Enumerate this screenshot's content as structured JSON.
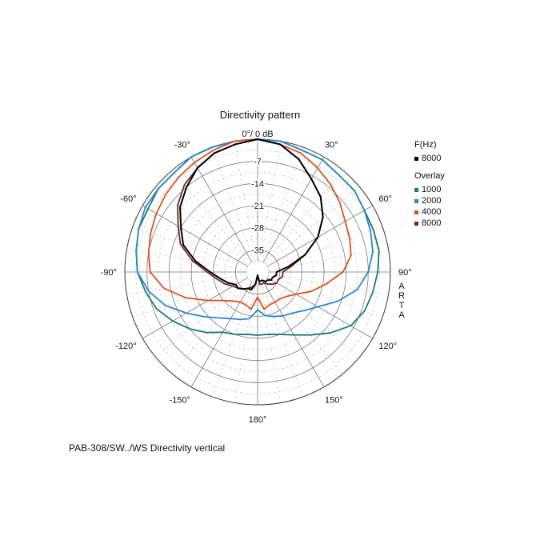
{
  "chart_data": {
    "type": "polar",
    "title": "Directivity pattern",
    "caption": "PAB-308/SW../WS  Directivity vertical",
    "watermark": "ARTA",
    "radial_axis": {
      "unit_top_label": "0°/ 0 dB",
      "ticks": [
        "-7",
        "-14",
        "-21",
        "-28",
        "-35"
      ],
      "tick_values": [
        -7,
        -14,
        -21,
        -28,
        -35
      ],
      "range_db": [
        -42,
        0
      ]
    },
    "angle_labels": [
      "-30°",
      "30°",
      "-60°",
      "60°",
      "-90°",
      "90°",
      "-120°",
      "120°",
      "-150°",
      "150°",
      "180°"
    ],
    "angle_values": [
      -30,
      30,
      -60,
      60,
      -90,
      90,
      -120,
      120,
      -150,
      150,
      180
    ],
    "legend": {
      "main_header": "F(Hz)",
      "main": [
        {
          "label": "8000",
          "color": "#000000"
        }
      ],
      "overlay_header": "Overlay",
      "overlay": [
        {
          "label": "1000",
          "color": "#1a7a6e"
        },
        {
          "label": "2000",
          "color": "#2a86cf"
        },
        {
          "label": "4000",
          "color": "#e0501e"
        },
        {
          "label": "8000",
          "color": "#6b2a22"
        }
      ]
    },
    "series": [
      {
        "name": "8000",
        "color": "#000000",
        "angles": [
          0,
          10,
          20,
          30,
          40,
          50,
          60,
          70,
          80,
          90,
          100,
          110,
          120,
          130,
          140,
          150,
          160,
          170,
          180,
          190,
          200,
          210,
          220,
          230,
          240,
          250,
          260,
          270,
          280,
          290,
          300,
          310,
          320,
          330,
          340,
          350
        ],
        "db": [
          0,
          -1,
          -4,
          -8,
          -11,
          -15,
          -20,
          -26,
          -32,
          -36,
          -36,
          -37,
          -37,
          -38,
          -38,
          -39,
          -39,
          -39,
          -41,
          -38,
          -36,
          -36,
          -35,
          -34,
          -34,
          -32,
          -30,
          -27,
          -22,
          -17,
          -14,
          -10,
          -7,
          -4,
          -2,
          -1
        ]
      },
      {
        "name": "1000",
        "color": "#1a7a6e",
        "angles": [
          0,
          10,
          20,
          30,
          40,
          50,
          60,
          70,
          80,
          90,
          100,
          110,
          120,
          130,
          140,
          150,
          160,
          170,
          180,
          190,
          200,
          210,
          220,
          230,
          240,
          250,
          260,
          270,
          280,
          290,
          300,
          310,
          320,
          330,
          340,
          350
        ],
        "db": [
          0,
          0,
          -1,
          -1,
          -2,
          -2,
          -3,
          -3,
          -3,
          -4,
          -5,
          -6,
          -8,
          -12,
          -16,
          -19,
          -21,
          -22,
          -22,
          -22,
          -21,
          -20,
          -17,
          -14,
          -11,
          -8,
          -6,
          -4,
          -3,
          -2,
          -2,
          -1,
          -1,
          0,
          0,
          0
        ]
      },
      {
        "name": "2000",
        "color": "#2a86cf",
        "angles": [
          0,
          10,
          20,
          30,
          40,
          50,
          60,
          70,
          80,
          90,
          100,
          110,
          120,
          130,
          140,
          150,
          160,
          170,
          180,
          190,
          200,
          210,
          220,
          230,
          240,
          250,
          260,
          270,
          280,
          290,
          300,
          310,
          320,
          330,
          340,
          350
        ],
        "db": [
          0,
          0,
          -1,
          -1,
          -2,
          -2,
          -3,
          -4,
          -5,
          -7,
          -10,
          -15,
          -20,
          -23,
          -25,
          -26,
          -27,
          -28,
          -30,
          -27,
          -26,
          -25,
          -23,
          -20,
          -16,
          -11,
          -7,
          -4,
          -3,
          -2,
          -1,
          -1,
          -1,
          0,
          0,
          0
        ]
      },
      {
        "name": "4000",
        "color": "#e0501e",
        "angles": [
          0,
          10,
          20,
          30,
          40,
          50,
          60,
          70,
          80,
          90,
          100,
          110,
          120,
          130,
          140,
          150,
          160,
          170,
          180,
          190,
          200,
          210,
          220,
          230,
          240,
          250,
          260,
          270,
          280,
          290,
          300,
          310,
          320,
          330,
          340,
          350
        ],
        "db": [
          0,
          -1,
          -2,
          -4,
          -6,
          -8,
          -10,
          -11,
          -12,
          -15,
          -20,
          -24,
          -28,
          -30,
          -31,
          -31,
          -31,
          -30,
          -34,
          -30,
          -31,
          -31,
          -30,
          -28,
          -24,
          -18,
          -12,
          -8,
          -7,
          -6,
          -5,
          -4,
          -3,
          -2,
          -1,
          0
        ]
      },
      {
        "name": "8000 overlay",
        "color": "#6b2a22",
        "angles": [
          0,
          10,
          20,
          30,
          40,
          50,
          60,
          70,
          80,
          90,
          100,
          110,
          120,
          130,
          140,
          150,
          160,
          170,
          180,
          190,
          200,
          210,
          220,
          230,
          240,
          250,
          260,
          270,
          280,
          290,
          300,
          310,
          320,
          330,
          340,
          350
        ],
        "db": [
          0,
          -1,
          -4,
          -8,
          -11,
          -15,
          -20,
          -26,
          -31,
          -34,
          -34,
          -35,
          -35,
          -36,
          -37,
          -38,
          -38,
          -38,
          -41,
          -38,
          -37,
          -36,
          -35,
          -34,
          -33,
          -31,
          -29,
          -26,
          -21,
          -16,
          -13,
          -9,
          -6,
          -4,
          -2,
          -1
        ]
      }
    ]
  }
}
